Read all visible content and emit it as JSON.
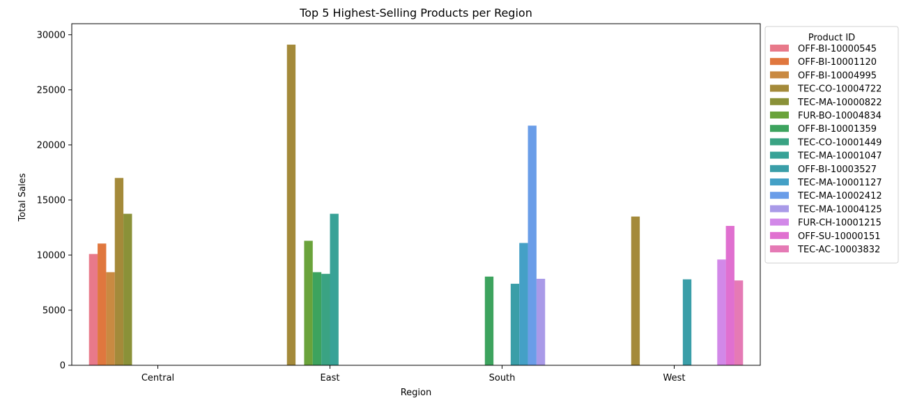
{
  "chart_data": {
    "type": "bar",
    "title": "Top 5 Highest-Selling Products per Region",
    "xlabel": "Region",
    "ylabel": "Total Sales",
    "categories": [
      "Central",
      "East",
      "South",
      "West"
    ],
    "ylim": [
      0,
      31000
    ],
    "yticks": [
      0,
      5000,
      10000,
      15000,
      20000,
      25000,
      30000
    ],
    "legend_title": "Product ID",
    "legend_position": "outside-right-top",
    "series": [
      {
        "name": "OFF-BI-10000545",
        "color": "#e8798a",
        "values": [
          10100,
          null,
          null,
          null
        ]
      },
      {
        "name": "OFF-BI-10001120",
        "color": "#e0773e",
        "values": [
          11050,
          null,
          null,
          null
        ]
      },
      {
        "name": "OFF-BI-10004995",
        "color": "#c98a42",
        "values": [
          8450,
          null,
          null,
          null
        ]
      },
      {
        "name": "TEC-CO-10004722",
        "color": "#a48a3a",
        "values": [
          17000,
          29100,
          null,
          13500
        ]
      },
      {
        "name": "TEC-MA-10000822",
        "color": "#8a9138",
        "values": [
          13750,
          null,
          null,
          null
        ]
      },
      {
        "name": "FUR-BO-10004834",
        "color": "#6aa33b",
        "values": [
          null,
          11300,
          null,
          null
        ]
      },
      {
        "name": "OFF-BI-10001359",
        "color": "#3da35e",
        "values": [
          null,
          8450,
          8050,
          null
        ]
      },
      {
        "name": "TEC-CO-10001449",
        "color": "#3aa383",
        "values": [
          null,
          8300,
          null,
          null
        ]
      },
      {
        "name": "TEC-MA-10001047",
        "color": "#38a297",
        "values": [
          null,
          13750,
          null,
          null
        ]
      },
      {
        "name": "OFF-BI-10003527",
        "color": "#3a9ea8",
        "values": [
          null,
          null,
          7400,
          7800
        ]
      },
      {
        "name": "TEC-MA-10001127",
        "color": "#44a0c6",
        "values": [
          null,
          null,
          11100,
          null
        ]
      },
      {
        "name": "TEC-MA-10002412",
        "color": "#6a9de8",
        "values": [
          null,
          null,
          21750,
          null
        ]
      },
      {
        "name": "TEC-MA-10004125",
        "color": "#a99ae8",
        "values": [
          null,
          null,
          7850,
          null
        ]
      },
      {
        "name": "FUR-CH-10001215",
        "color": "#d288e8",
        "values": [
          null,
          null,
          null,
          9600
        ]
      },
      {
        "name": "OFF-SU-10000151",
        "color": "#e070d0",
        "values": [
          null,
          null,
          null,
          12650
        ]
      },
      {
        "name": "TEC-AC-10003832",
        "color": "#e57ab5",
        "values": [
          null,
          null,
          null,
          7700
        ]
      }
    ],
    "grid": false
  }
}
